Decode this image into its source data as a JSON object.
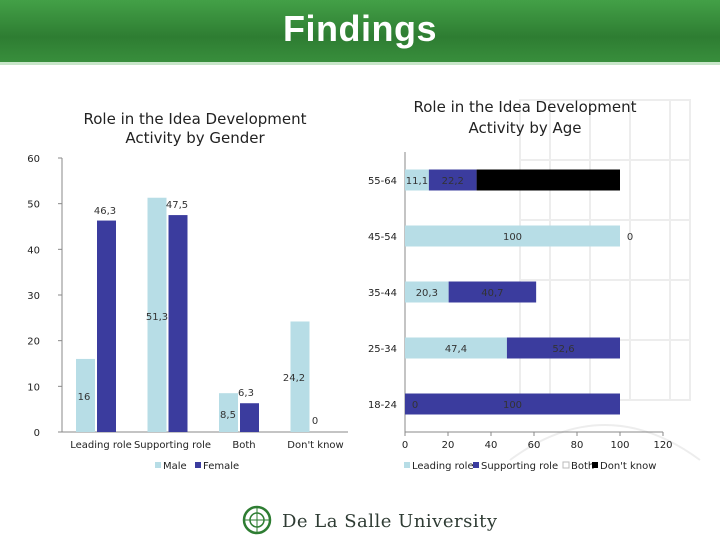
{
  "header": {
    "title": "Findings"
  },
  "colors": {
    "male": "#b7dde6",
    "female": "#3b3c9e",
    "leading": "#b7dde6",
    "supporting": "#3b3c9e",
    "both": "#ffffff",
    "dont_know": "#000000"
  },
  "chart_data": [
    {
      "type": "bar",
      "title_lines": [
        "Role in the Idea Development",
        "Activity by Gender"
      ],
      "categories": [
        "Leading role",
        "Supporting role",
        "Both",
        "Don't know"
      ],
      "series": [
        {
          "name": "Male",
          "values": [
            16,
            51.3,
            8.5,
            24.2
          ],
          "labels": [
            "16",
            "51,3",
            "8,5",
            "24,2"
          ]
        },
        {
          "name": "Female",
          "values": [
            46.3,
            47.5,
            6.3,
            0
          ],
          "labels": [
            "46,3",
            "47,5",
            "6,3",
            "0"
          ]
        }
      ],
      "ylim": [
        0,
        60
      ],
      "yticks": [
        "0",
        "10",
        "20",
        "30",
        "40",
        "50",
        "60"
      ],
      "legend": "bottom"
    },
    {
      "type": "bar",
      "orientation": "horizontal",
      "stacked": true,
      "title_lines": [
        "Role in the Idea Development",
        "Activity by Age"
      ],
      "categories": [
        "18-24",
        "25-34",
        "35-44",
        "45-54",
        "55-64"
      ],
      "series": [
        {
          "name": "Leading role",
          "values": [
            0,
            47.4,
            20.3,
            100,
            11.1
          ],
          "labels": [
            "0",
            "47,4",
            "20,3",
            "100",
            "11,1"
          ]
        },
        {
          "name": "Supporting role",
          "values": [
            100,
            52.6,
            40.7,
            0,
            22.2
          ],
          "labels": [
            "100",
            "52,6",
            "40,7",
            "0",
            "22,2"
          ]
        },
        {
          "name": "Both",
          "values": [
            0,
            0,
            0,
            0,
            0
          ],
          "labels": [
            "",
            "",
            "",
            "",
            ""
          ]
        },
        {
          "name": "Don't know",
          "values": [
            0,
            0,
            0,
            0,
            66.7
          ],
          "labels": [
            "",
            "",
            "",
            "",
            ""
          ]
        }
      ],
      "xlim": [
        0,
        120
      ],
      "xticks": [
        "0",
        "20",
        "40",
        "60",
        "80",
        "100",
        "120"
      ],
      "legend": "bottom"
    }
  ],
  "footer": {
    "brand": "De La Salle University"
  }
}
